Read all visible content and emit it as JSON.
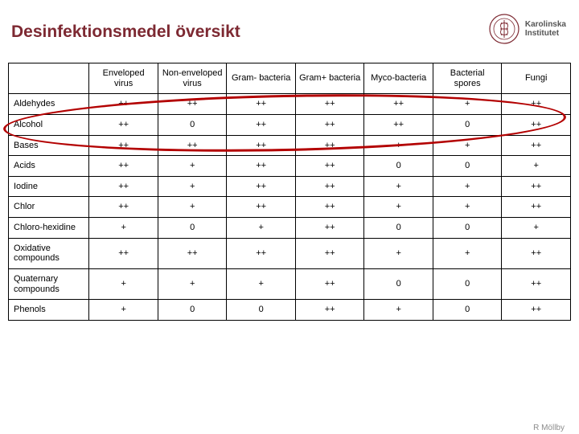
{
  "title": "Desinfektionsmedel översikt",
  "logo": {
    "line1": "Karolinska",
    "line2": "Institutet",
    "seal_stroke": "#7d2932",
    "seal_fill": "#ffffff"
  },
  "table": {
    "columns": [
      "",
      "Enveloped virus",
      "Non-enveloped virus",
      "Gram- bacteria",
      "Gram+ bacteria",
      "Myco-bacteria",
      "Bacterial spores",
      "Fungi"
    ],
    "rows": [
      {
        "label": "Aldehydes",
        "cells": [
          "++",
          "++",
          "++",
          "++",
          "++",
          "+",
          "++"
        ]
      },
      {
        "label": "Alcohol",
        "cells": [
          "++",
          "0",
          "++",
          "++",
          "++",
          "0",
          "++"
        ]
      },
      {
        "label": "Bases",
        "cells": [
          "++",
          "++",
          "++",
          "++",
          "+",
          "+",
          "++"
        ]
      },
      {
        "label": "Acids",
        "cells": [
          "++",
          "+",
          "++",
          "++",
          "0",
          "0",
          "+"
        ]
      },
      {
        "label": "Iodine",
        "cells": [
          "++",
          "+",
          "++",
          "++",
          "+",
          "+",
          "++"
        ]
      },
      {
        "label": "Chlor",
        "cells": [
          "++",
          "+",
          "++",
          "++",
          "+",
          "+",
          "++"
        ]
      },
      {
        "label": "Chloro-hexidine",
        "cells": [
          "+",
          "0",
          "+",
          "++",
          "0",
          "0",
          "+"
        ]
      },
      {
        "label": "Oxidative compounds",
        "cells": [
          "++",
          "++",
          "++",
          "++",
          "+",
          "+",
          "++"
        ]
      },
      {
        "label": "Quaternary compounds",
        "cells": [
          "+",
          "+",
          "+",
          "++",
          "0",
          "0",
          "++"
        ]
      },
      {
        "label": "Phenols",
        "cells": [
          "+",
          "0",
          "0",
          "++",
          "+",
          "0",
          "++"
        ]
      }
    ],
    "border_color": "#000000",
    "font_size": 11
  },
  "highlight": {
    "color": "#b30000",
    "row_range": "Aldehydes–Bases (Alcohol emphasized)"
  },
  "footer_name": "R Möllby"
}
